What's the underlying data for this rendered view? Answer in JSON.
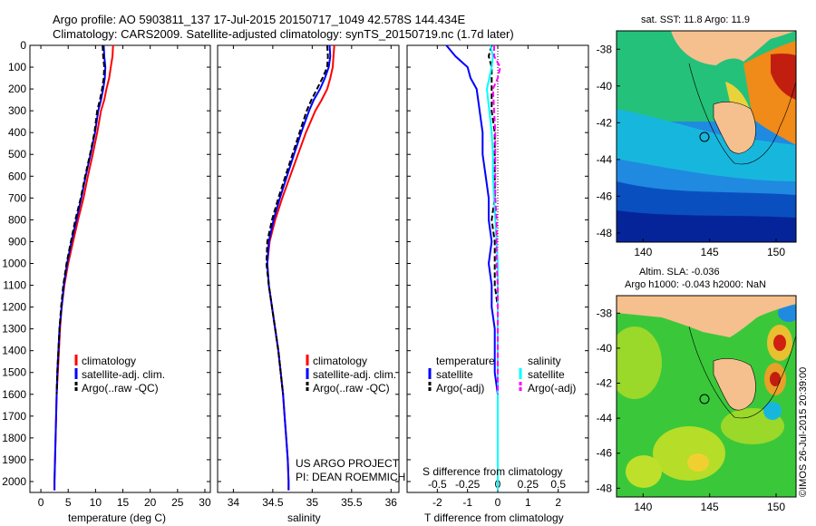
{
  "header": {
    "line1": "Argo profile: AO 5903811_137 17-Jul-2015 20150717_1049 42.578S 144.434E",
    "line2": "Climatology: CARS2009. Satellite-adjusted climatology: synTS_20150719.nc (1.7d later)"
  },
  "colors": {
    "climatology": "#ff0000",
    "satellite": "#0000ff",
    "argo": "#000000",
    "sal_satellite": "#00ffff",
    "sal_argo": "#ff00ff"
  },
  "chart_data": [
    {
      "type": "line",
      "id": "temperature",
      "xlabel": "temperature (deg C)",
      "ylabel": "",
      "xlim": [
        -2,
        31
      ],
      "ylim": [
        2050,
        0
      ],
      "xticks": [
        "0",
        "5",
        "10",
        "15",
        "20",
        "25",
        "30"
      ],
      "yticks": [
        "0",
        "100",
        "200",
        "300",
        "400",
        "500",
        "600",
        "700",
        "800",
        "900",
        "1000",
        "1100",
        "1200",
        "1300",
        "1400",
        "1500",
        "1600",
        "1700",
        "1800",
        "1900",
        "2000"
      ],
      "legend": [
        "climatology",
        "satellite-adj. clim.",
        "Argo(..raw -QC)"
      ],
      "series": [
        {
          "name": "climatology",
          "points": [
            [
              13.2,
              0
            ],
            [
              13.1,
              50
            ],
            [
              12.8,
              100
            ],
            [
              12.5,
              150
            ],
            [
              12.0,
              200
            ],
            [
              11.6,
              250
            ],
            [
              11.0,
              300
            ],
            [
              10.3,
              400
            ],
            [
              9.5,
              500
            ],
            [
              8.6,
              600
            ],
            [
              7.8,
              700
            ],
            [
              6.8,
              800
            ],
            [
              5.9,
              900
            ],
            [
              5.0,
              1000
            ],
            [
              4.3,
              1100
            ],
            [
              3.8,
              1200
            ],
            [
              3.5,
              1300
            ],
            [
              3.3,
              1400
            ],
            [
              3.1,
              1500
            ],
            [
              2.9,
              1600
            ],
            [
              2.8,
              1700
            ],
            [
              2.7,
              1800
            ],
            [
              2.6,
              1900
            ],
            [
              2.5,
              2000
            ],
            [
              2.5,
              2040
            ]
          ]
        },
        {
          "name": "satellite-adj. clim.",
          "points": [
            [
              11.5,
              0
            ],
            [
              11.6,
              50
            ],
            [
              11.8,
              100
            ],
            [
              11.7,
              150
            ],
            [
              11.4,
              200
            ],
            [
              11.0,
              250
            ],
            [
              10.5,
              300
            ],
            [
              9.9,
              400
            ],
            [
              9.1,
              500
            ],
            [
              8.2,
              600
            ],
            [
              7.4,
              700
            ],
            [
              6.5,
              800
            ],
            [
              5.6,
              900
            ],
            [
              4.8,
              1000
            ],
            [
              4.2,
              1100
            ],
            [
              3.8,
              1200
            ],
            [
              3.4,
              1300
            ],
            [
              3.2,
              1400
            ],
            [
              3.0,
              1500
            ],
            [
              2.9,
              1600
            ],
            [
              2.8,
              1700
            ],
            [
              2.7,
              1800
            ],
            [
              2.6,
              1900
            ],
            [
              2.5,
              2000
            ],
            [
              2.5,
              2040
            ]
          ]
        },
        {
          "name": "Argo(..raw -QC)",
          "points": [
            [
              11.3,
              0
            ],
            [
              11.4,
              50
            ],
            [
              11.6,
              100
            ],
            [
              11.5,
              150
            ],
            [
              11.2,
              200
            ],
            [
              10.8,
              250
            ],
            [
              10.3,
              300
            ],
            [
              9.8,
              400
            ],
            [
              9.0,
              500
            ],
            [
              8.1,
              600
            ],
            [
              7.3,
              700
            ],
            [
              6.3,
              800
            ],
            [
              5.5,
              900
            ],
            [
              4.7,
              1000
            ],
            [
              4.1,
              1100
            ],
            [
              3.7,
              1200
            ],
            [
              3.4,
              1300
            ],
            [
              3.2,
              1400
            ],
            [
              3.0,
              1500
            ],
            [
              2.9,
              1600
            ]
          ]
        }
      ]
    },
    {
      "type": "line",
      "id": "salinity",
      "xlabel": "salinity",
      "ylabel": "",
      "xlim": [
        33.8,
        36.1
      ],
      "ylim": [
        2050,
        0
      ],
      "xticks": [
        "34",
        "34.5",
        "35",
        "35.5",
        "36"
      ],
      "legend": [
        "climatology",
        "satellite-adj. clim.",
        "Argo(..raw -QC)"
      ],
      "annotations": [
        "US ARGO PROJECT",
        "PI: DEAN ROEMMICH"
      ],
      "series": [
        {
          "name": "climatology",
          "points": [
            [
              35.28,
              0
            ],
            [
              35.27,
              50
            ],
            [
              35.26,
              100
            ],
            [
              35.23,
              150
            ],
            [
              35.19,
              200
            ],
            [
              35.12,
              250
            ],
            [
              35.04,
              300
            ],
            [
              34.92,
              400
            ],
            [
              34.82,
              500
            ],
            [
              34.72,
              600
            ],
            [
              34.62,
              700
            ],
            [
              34.53,
              800
            ],
            [
              34.46,
              900
            ],
            [
              34.43,
              1000
            ],
            [
              34.45,
              1100
            ],
            [
              34.49,
              1200
            ],
            [
              34.53,
              1300
            ],
            [
              34.57,
              1400
            ],
            [
              34.6,
              1500
            ],
            [
              34.63,
              1600
            ],
            [
              34.65,
              1700
            ],
            [
              34.67,
              1800
            ],
            [
              34.69,
              1900
            ],
            [
              34.7,
              2000
            ],
            [
              34.7,
              2040
            ]
          ]
        },
        {
          "name": "satellite-adj. clim.",
          "points": [
            [
              35.22,
              0
            ],
            [
              35.23,
              50
            ],
            [
              35.21,
              100
            ],
            [
              35.16,
              150
            ],
            [
              35.1,
              200
            ],
            [
              35.02,
              250
            ],
            [
              34.96,
              300
            ],
            [
              34.86,
              400
            ],
            [
              34.77,
              500
            ],
            [
              34.68,
              600
            ],
            [
              34.59,
              700
            ],
            [
              34.51,
              800
            ],
            [
              34.45,
              900
            ],
            [
              34.43,
              1000
            ],
            [
              34.45,
              1100
            ],
            [
              34.49,
              1200
            ],
            [
              34.53,
              1300
            ],
            [
              34.57,
              1400
            ],
            [
              34.6,
              1500
            ],
            [
              34.63,
              1600
            ],
            [
              34.65,
              1700
            ],
            [
              34.67,
              1800
            ],
            [
              34.69,
              1900
            ],
            [
              34.7,
              2000
            ],
            [
              34.7,
              2040
            ]
          ]
        },
        {
          "name": "Argo(..raw -QC)",
          "points": [
            [
              35.19,
              0
            ],
            [
              35.2,
              50
            ],
            [
              35.19,
              100
            ],
            [
              35.13,
              150
            ],
            [
              35.06,
              200
            ],
            [
              34.99,
              250
            ],
            [
              34.93,
              300
            ],
            [
              34.84,
              400
            ],
            [
              34.75,
              500
            ],
            [
              34.66,
              600
            ],
            [
              34.57,
              700
            ],
            [
              34.49,
              800
            ],
            [
              34.43,
              900
            ],
            [
              34.42,
              1000
            ],
            [
              34.45,
              1100
            ],
            [
              34.49,
              1200
            ],
            [
              34.53,
              1300
            ],
            [
              34.57,
              1400
            ],
            [
              34.6,
              1500
            ],
            [
              34.63,
              1600
            ]
          ]
        }
      ]
    },
    {
      "type": "line",
      "id": "difference",
      "xlabel": "T difference from climatology",
      "xlabel_top": "S difference from climatology",
      "xlim": [
        -3,
        3
      ],
      "ylim": [
        2050,
        0
      ],
      "xticks": [
        "-2",
        "-1",
        "0",
        "1",
        "2"
      ],
      "sticks": [
        "-0.5",
        "-0.25",
        "0",
        "0.25",
        "0.5"
      ],
      "legend_titles": [
        "temperature",
        "salinity"
      ],
      "legend": [
        "satellite",
        "Argo(-adj)",
        "satellite",
        "Argo(-adj)"
      ],
      "series": [
        {
          "name": "T satellite",
          "points": [
            [
              -1.7,
              0
            ],
            [
              -1.4,
              50
            ],
            [
              -1.0,
              100
            ],
            [
              -0.9,
              150
            ],
            [
              -0.7,
              200
            ],
            [
              -0.6,
              300
            ],
            [
              -0.5,
              400
            ],
            [
              -0.5,
              500
            ],
            [
              -0.4,
              600
            ],
            [
              -0.3,
              700
            ],
            [
              -0.3,
              800
            ],
            [
              -0.2,
              900
            ],
            [
              -0.3,
              1000
            ],
            [
              -0.2,
              1100
            ],
            [
              -0.2,
              1200
            ],
            [
              -0.1,
              1300
            ],
            [
              -0.1,
              1400
            ],
            [
              -0.1,
              1500
            ],
            [
              0,
              1600
            ],
            [
              0,
              1700
            ],
            [
              0,
              1800
            ],
            [
              0,
              1900
            ],
            [
              0,
              2000
            ],
            [
              0,
              2040
            ]
          ]
        },
        {
          "name": "T Argo(-adj)",
          "points": [
            [
              -0.2,
              0
            ],
            [
              -0.3,
              50
            ],
            [
              -0.2,
              100
            ],
            [
              -0.2,
              150
            ],
            [
              -0.2,
              200
            ],
            [
              -0.2,
              300
            ],
            [
              -0.1,
              400
            ],
            [
              -0.1,
              500
            ],
            [
              -0.1,
              600
            ],
            [
              -0.1,
              700
            ],
            [
              -0.2,
              800
            ],
            [
              -0.1,
              900
            ],
            [
              -0.1,
              1000
            ],
            [
              -0.1,
              1100
            ],
            [
              0,
              1200
            ],
            [
              0,
              1300
            ],
            [
              0,
              1400
            ],
            [
              0,
              1500
            ],
            [
              0,
              1600
            ]
          ]
        },
        {
          "name": "S satellite",
          "points": [
            [
              -0.06,
              0
            ],
            [
              -0.04,
              50
            ],
            [
              -0.05,
              100
            ],
            [
              -0.07,
              150
            ],
            [
              -0.09,
              200
            ],
            [
              -0.07,
              300
            ],
            [
              -0.05,
              400
            ],
            [
              -0.04,
              500
            ],
            [
              -0.04,
              600
            ],
            [
              -0.03,
              700
            ],
            [
              -0.02,
              800
            ],
            [
              -0.01,
              900
            ],
            [
              0,
              1000
            ],
            [
              0,
              1200
            ],
            [
              0,
              1400
            ],
            [
              0,
              1600
            ],
            [
              0,
              1800
            ],
            [
              0,
              2000
            ],
            [
              0,
              2040
            ]
          ]
        },
        {
          "name": "S Argo(-adj)",
          "points": [
            [
              -0.03,
              0
            ],
            [
              -0.03,
              50
            ],
            [
              0.02,
              100
            ],
            [
              0.0,
              150
            ],
            [
              -0.04,
              200
            ],
            [
              -0.03,
              300
            ],
            [
              -0.02,
              400
            ],
            [
              -0.02,
              500
            ],
            [
              -0.02,
              600
            ],
            [
              -0.02,
              700
            ],
            [
              -0.01,
              800
            ],
            [
              -0.01,
              900
            ],
            [
              -0.01,
              1000
            ],
            [
              0,
              1100
            ],
            [
              0,
              1200
            ],
            [
              0,
              1400
            ],
            [
              0,
              1600
            ]
          ]
        }
      ]
    },
    {
      "type": "heatmap",
      "id": "sst-map",
      "title": "sat. SST: 11.8 Argo: 11.9",
      "xlim": [
        138,
        151.5
      ],
      "ylim": [
        -48.5,
        -37
      ],
      "xticks": [
        "140",
        "145",
        "150"
      ],
      "yticks": [
        "-38",
        "-40",
        "-42",
        "-44",
        "-46",
        "-48"
      ],
      "argo_position": [
        144.434,
        -42.578
      ]
    },
    {
      "type": "heatmap",
      "id": "sla-map",
      "title_line1": "Altim. SLA: -0.036",
      "title_line2": "Argo h1000: -0.043 h2000: NaN",
      "xlim": [
        138,
        151.5
      ],
      "ylim": [
        -48.5,
        -37
      ],
      "xticks": [
        "140",
        "145",
        "150"
      ],
      "yticks": [
        "-38",
        "-40",
        "-42",
        "-44",
        "-46",
        "-48"
      ],
      "argo_position": [
        144.434,
        -42.578
      ]
    }
  ],
  "stamp": "©IMOS 26-Jul-2015 20:39:00"
}
